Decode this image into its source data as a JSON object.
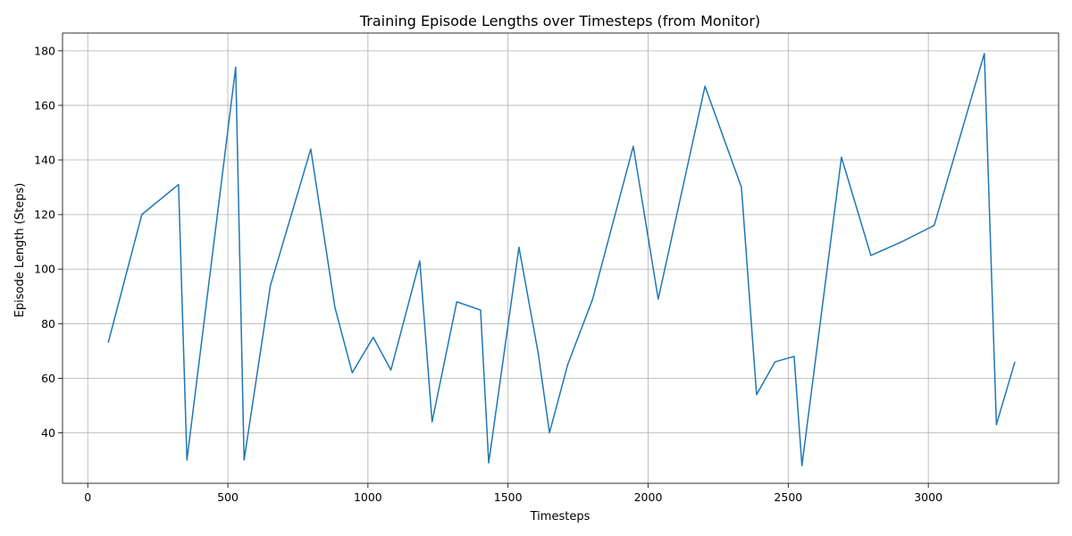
{
  "chart_data": {
    "type": "line",
    "title": "Training Episode Lengths over Timesteps (from Monitor)",
    "xlabel": "Timesteps",
    "ylabel": "Episode Length (Steps)",
    "xlim": [
      -90,
      3465
    ],
    "ylim": [
      21.5,
      186.5
    ],
    "xticks": [
      0,
      500,
      1000,
      1500,
      2000,
      2500,
      3000
    ],
    "yticks": [
      40,
      60,
      80,
      100,
      120,
      140,
      160,
      180
    ],
    "grid": true,
    "series": [
      {
        "color": "#1f77b4",
        "x": [
          73,
          193,
          324,
          354,
          528,
          558,
          652,
          796,
          882,
          944,
          1019,
          1082,
          1185,
          1229,
          1317,
          1402,
          1431,
          1539,
          1608,
          1648,
          1713,
          1802,
          1947,
          2036,
          2203,
          2333,
          2387,
          2453,
          2521,
          2549,
          2690,
          2795,
          2905,
          3021,
          3200,
          3243,
          3309
        ],
        "y": [
          73,
          120,
          131,
          30,
          174,
          30,
          94,
          144,
          86,
          62,
          75,
          63,
          103,
          44,
          88,
          85,
          29,
          108,
          69,
          40,
          65,
          89,
          145,
          89,
          167,
          130,
          54,
          66,
          68,
          28,
          141,
          105,
          110,
          116,
          179,
          43,
          66
        ]
      }
    ]
  }
}
